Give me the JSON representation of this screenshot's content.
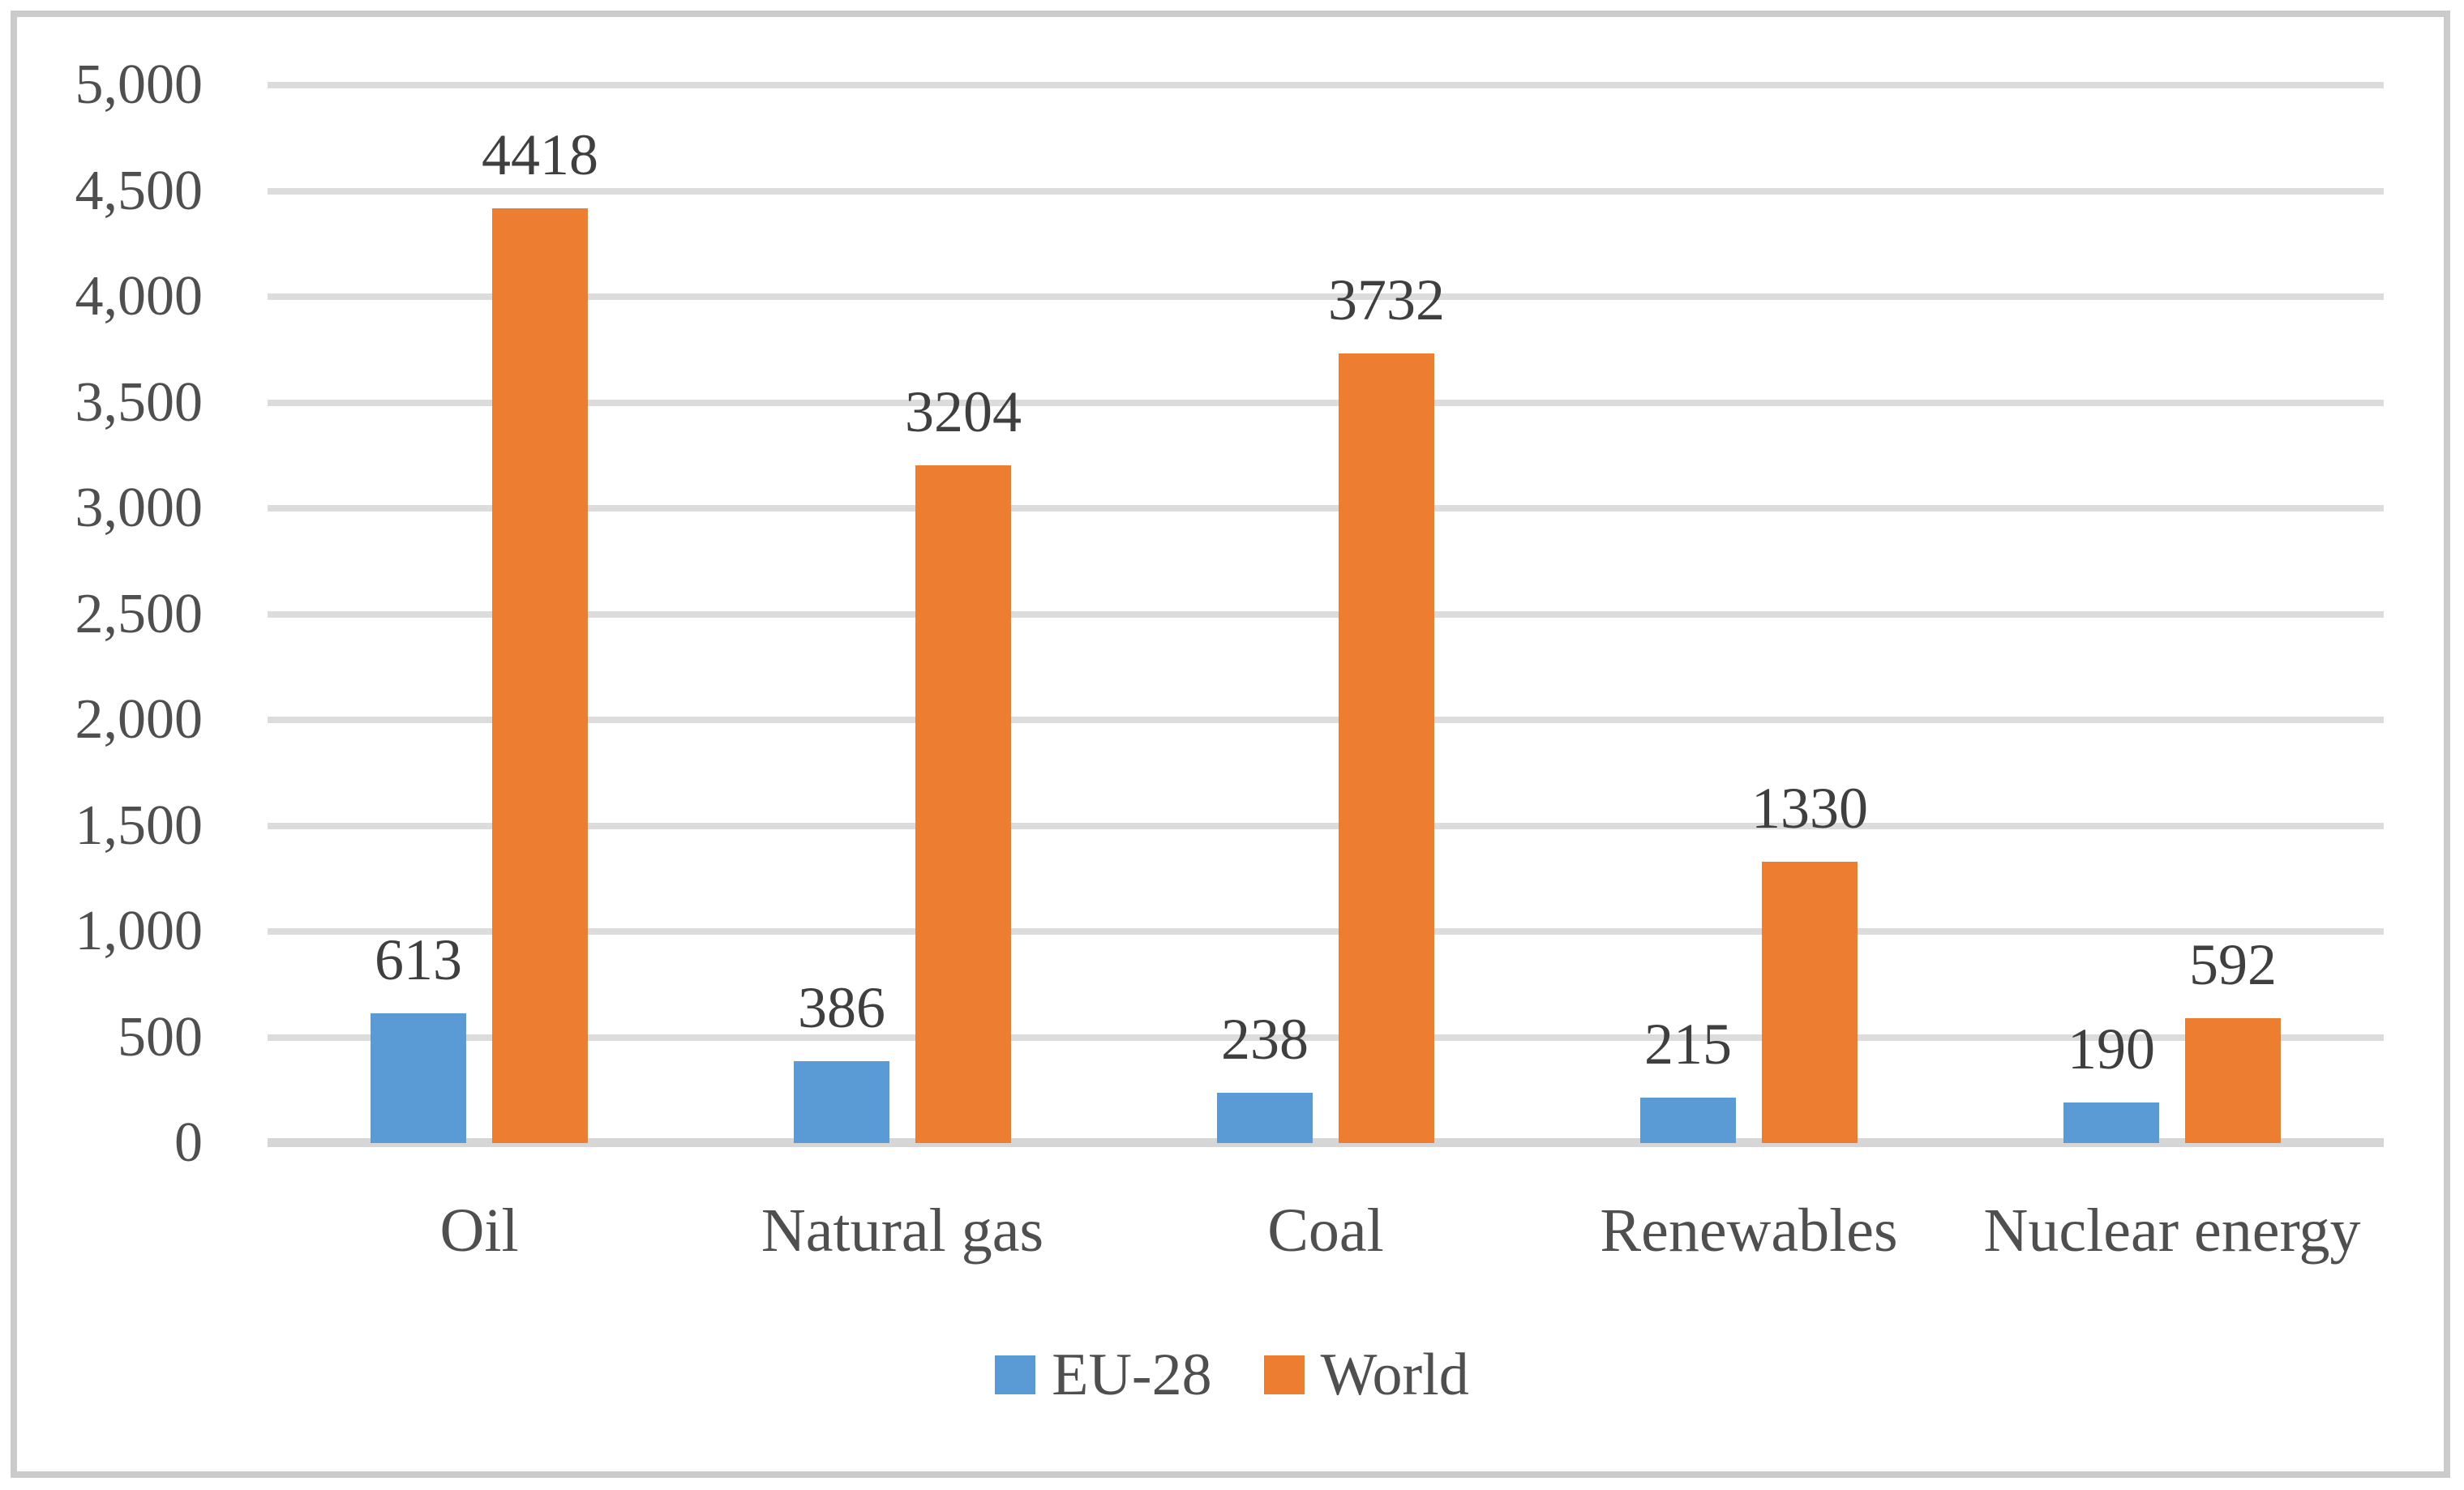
{
  "colors": {
    "series_eu": "#5B9BD5",
    "series_world": "#ED7D31",
    "grid": "#DCDCDC",
    "axis_line": "#D6D6D6",
    "frame_border": "#CBCBCB",
    "tick_text": "#4F4F4F",
    "value_text": "#3F3F3F",
    "bg": "#FFFFFF"
  },
  "chart_data": {
    "type": "bar",
    "categories": [
      "Oil",
      "Natural gas",
      "Coal",
      "Renewables",
      "Nuclear energy"
    ],
    "series": [
      {
        "name": "EU-28",
        "color": "#5B9BD5",
        "values": [
          613,
          386,
          238,
          215,
          190
        ],
        "value_labels": [
          "613",
          "386",
          "238",
          "215",
          "190"
        ]
      },
      {
        "name": "World",
        "color": "#ED7D31",
        "values": [
          4418,
          3204,
          3732,
          1330,
          592
        ],
        "value_labels": [
          "4418",
          "3204",
          "3732",
          "1330",
          "592"
        ]
      }
    ],
    "ylim": [
      0,
      5000
    ],
    "ytick_step": 500,
    "yticks": [
      {
        "value": 0,
        "label": "0"
      },
      {
        "value": 500,
        "label": "500"
      },
      {
        "value": 1000,
        "label": "1,000"
      },
      {
        "value": 1500,
        "label": "1,500"
      },
      {
        "value": 2000,
        "label": "2,000"
      },
      {
        "value": 2500,
        "label": "2,500"
      },
      {
        "value": 3000,
        "label": "3,000"
      },
      {
        "value": 3500,
        "label": "3,500"
      },
      {
        "value": 4000,
        "label": "4,000"
      },
      {
        "value": 4500,
        "label": "4,500"
      },
      {
        "value": 5000,
        "label": "5,000"
      }
    ],
    "grid": true,
    "data_labels": true,
    "legend_position": "bottom"
  }
}
